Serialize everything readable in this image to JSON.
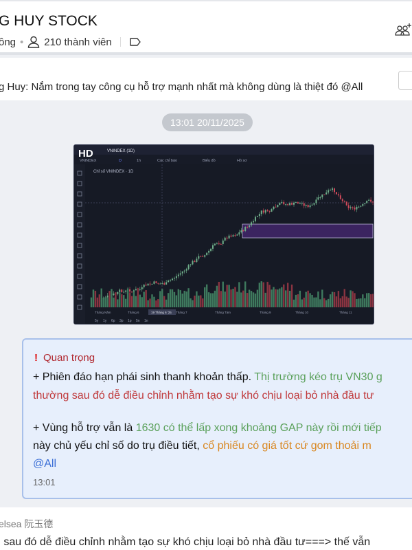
{
  "header": {
    "title": "G HUY STOCK",
    "status": "ông",
    "members": "210 thành viên",
    "icons": [
      "user-icon",
      "tag-icon",
      "add-group-icon"
    ]
  },
  "pinned": {
    "text": "g Huy: Nắm trong tay công cụ hỗ trợ mạnh nhất mà không dùng là thiệt đó @All"
  },
  "timestamp": "13:01 20/11/2025",
  "image": {
    "badge": "HD",
    "tab": "VNINDEX (1D)",
    "symbol": "VNINDEX",
    "toolbar": [
      "D",
      "1h",
      "Các chỉ báo",
      "Biểu đồ",
      "Hồ sơ"
    ],
    "legend": "Chỉ số VNINDEX · 1D",
    "xlabels": [
      "Tháng Năm",
      "Tháng 6",
      "19 Tháng 6 '25",
      "Tháng 7",
      "Tháng Tám",
      "Tháng 9",
      "Tháng 10",
      "Tháng 11"
    ],
    "ranges": [
      "5y",
      "1y",
      "6p",
      "3p",
      "1p",
      "5n",
      "1n"
    ]
  },
  "message": {
    "label": "Quan trọng",
    "l1a": "+ Phiên đáo hạn phái sinh thanh khoản thấp. ",
    "l1b": "Thị trường kéo trụ VN30 g",
    "l2": "thường sau đó dễ điều chỉnh nhằm tạo sự khó chịu loại bỏ nhà đầu tư",
    "l3a": "+ Vùng hỗ trợ vẫn là ",
    "l3b": "1630 có thể lấp xong khoảng GAP này rồi mới tiếp",
    "l4a": "này chủ yếu chỉ số do trụ điều tiết, ",
    "l4b": "cổ phiếu có giá tốt cứ gom thoải m",
    "mention": "@All",
    "time": "13:01",
    "colors": {
      "green": "#5aa05a",
      "red": "#c0393b",
      "orange": "#d9861e",
      "mention": "#3b6fd6"
    }
  },
  "next": {
    "sender": "elsea 阮玉德",
    "text": "g sau đó dễ điều chỉnh nhằm tạo sự khó chịu loại bỏ nhà đầu tư===> thế vẫn"
  }
}
